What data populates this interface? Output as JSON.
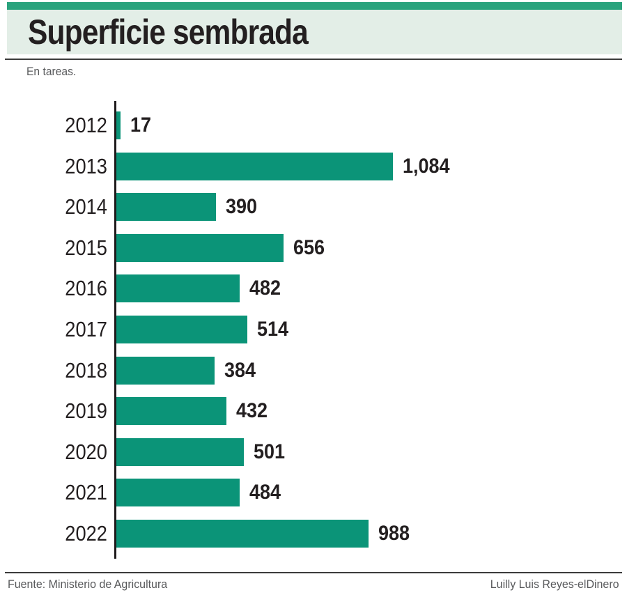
{
  "header": {
    "title": "Superficie sembrada",
    "accent_color": "#2aa37d",
    "band_color": "#e3eee7"
  },
  "subtitle": "En tareas.",
  "chart_data": {
    "type": "bar",
    "orientation": "horizontal",
    "title": "Superficie sembrada",
    "subtitle": "En tareas.",
    "units": "tareas",
    "categories": [
      "2012",
      "2013",
      "2014",
      "2015",
      "2016",
      "2017",
      "2018",
      "2019",
      "2020",
      "2021",
      "2022"
    ],
    "values": [
      17,
      1084,
      390,
      656,
      482,
      514,
      384,
      432,
      501,
      484,
      988
    ],
    "value_labels": [
      "17",
      "1,084",
      "390",
      "656",
      "482",
      "514",
      "384",
      "432",
      "501",
      "484",
      "988"
    ],
    "xlabel": "",
    "ylabel": "",
    "xlim": [
      0,
      1084
    ],
    "grid": false,
    "legend": false,
    "bar_color": "#0b9478",
    "axis_color": "#1f1b1c"
  },
  "footer": {
    "source": "Fuente: Ministerio de Agricultura",
    "credit": "Luilly Luis Reyes-elDinero"
  }
}
